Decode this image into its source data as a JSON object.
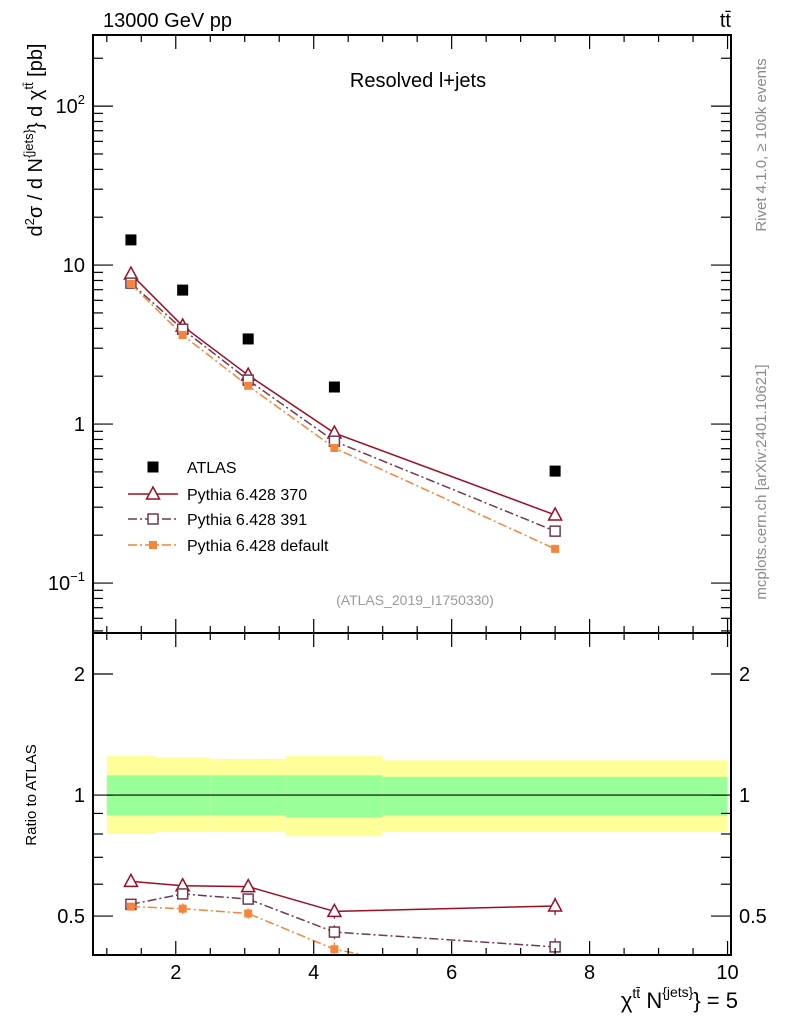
{
  "header": {
    "left": "13000 GeV pp",
    "right": "tt̄"
  },
  "side_labels": {
    "rivet": "Rivet 4.1.0, ≥ 100k events",
    "mcplots": "mcplots.cern.ch [arXiv:2401.10621]"
  },
  "chart_data": [
    {
      "type": "line",
      "panel": "main",
      "title": "Resolved l+jets",
      "analysis_tag": "(ATLAS_2019_I1750330)",
      "ylabel": {
        "a": "d",
        "a_sup": "2",
        "b": "σ / d N",
        "b_sup": "{jets}",
        "c": "} d χ",
        "c_sup": "tt̄",
        "d": " [pb]"
      },
      "yscale": "log",
      "ylim": [
        0.0485,
        280
      ],
      "xlim": [
        0.8,
        10.05
      ],
      "yticks": [
        {
          "v": 0.1,
          "label": "10",
          "sup": "−1"
        },
        {
          "v": 1,
          "label": "1",
          "sup": ""
        },
        {
          "v": 10,
          "label": "10",
          "sup": ""
        },
        {
          "v": 100,
          "label": "10",
          "sup": "2"
        }
      ],
      "bins": [
        1,
        1.7,
        2.5,
        3.6,
        5,
        10
      ],
      "x": [
        1.35,
        2.1,
        3.05,
        4.3,
        7.5
      ],
      "series": [
        {
          "name": "ATLAS",
          "color": "#000000",
          "marker": "filled-square",
          "line": "none",
          "values": [
            14.4,
            6.96,
            3.43,
            1.71,
            0.506
          ]
        },
        {
          "name": "Pythia 6.428 370",
          "color": "#9a0e24",
          "marker": "open-triangle",
          "line": "solid",
          "values": [
            8.78,
            4.14,
            2.03,
            0.878,
            0.268
          ]
        },
        {
          "name": "Pythia 6.428 391",
          "color": "#6e3a53",
          "marker": "open-square",
          "line": "dashdot",
          "values": [
            7.7,
            3.95,
            1.89,
            0.78,
            0.212
          ]
        },
        {
          "name": "Pythia 6.428 default",
          "color": "#f6843a",
          "marker": "filled-square-small",
          "line": "dashdot",
          "values": [
            7.6,
            3.63,
            1.74,
            0.707,
            0.164
          ]
        }
      ],
      "legend": "center-left"
    },
    {
      "type": "line",
      "panel": "ratio",
      "ylabel": "Ratio to ATLAS",
      "xlabel": {
        "a": "χ",
        "a_sup": "tt̄",
        "b": " N",
        "b_sup": "{jets}",
        "c": "} = 5"
      },
      "yscale": "log",
      "ylim": [
        0.4,
        2.53
      ],
      "yticks": [
        {
          "v": 0.5,
          "label": "0.5"
        },
        {
          "v": 1,
          "label": "1"
        },
        {
          "v": 2,
          "label": "2"
        }
      ],
      "xticks": [
        {
          "v": 2,
          "label": "2"
        },
        {
          "v": 4,
          "label": "4"
        },
        {
          "v": 6,
          "label": "6"
        },
        {
          "v": 8,
          "label": "8"
        },
        {
          "v": 10,
          "label": "10"
        }
      ],
      "band_total": [
        [
          0.8,
          1.25
        ],
        [
          0.81,
          1.24
        ],
        [
          0.81,
          1.23
        ],
        [
          0.79,
          1.25
        ],
        [
          0.81,
          1.22
        ]
      ],
      "band_stat": [
        [
          0.89,
          1.12
        ],
        [
          0.89,
          1.12
        ],
        [
          0.89,
          1.12
        ],
        [
          0.88,
          1.12
        ],
        [
          0.89,
          1.11
        ]
      ],
      "ratio_rel_err": [
        0.02,
        0.03,
        0.03,
        0.04,
        0.05
      ]
    }
  ]
}
